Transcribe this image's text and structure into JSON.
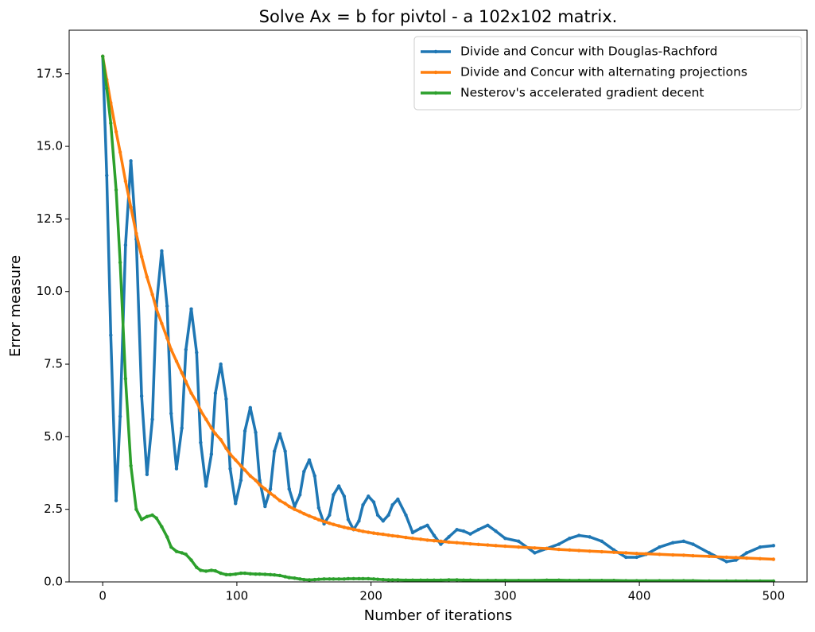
{
  "chart_data": {
    "type": "line",
    "title": "Solve Ax = b for pivtol - a 102x102 matrix.",
    "x_label": "Number of iterations",
    "y_label": "Error measure",
    "xlim": [
      -25,
      525
    ],
    "ylim": [
      0,
      19.0
    ],
    "xticks": [
      0,
      100,
      200,
      300,
      400,
      500
    ],
    "yticks": [
      {
        "value": 0,
        "label": "0.0"
      },
      2.5,
      {
        "value": 5,
        "label": "5.0"
      },
      7.5,
      {
        "value": 10,
        "label": "10.0"
      },
      12.5,
      {
        "value": 15,
        "label": "15.0"
      },
      17.5
    ],
    "grid": false,
    "legend": "upper right",
    "x": [
      0,
      3,
      6,
      10,
      13,
      17,
      21,
      25,
      29,
      33,
      37,
      40,
      44,
      48,
      51,
      55,
      59,
      62,
      66,
      70,
      73,
      77,
      81,
      84,
      88,
      92,
      95,
      99,
      103,
      106,
      110,
      114,
      117,
      121,
      125,
      128,
      132,
      136,
      139,
      143,
      147,
      150,
      154,
      158,
      161,
      165,
      169,
      172,
      176,
      180,
      183,
      187,
      191,
      194,
      198,
      202,
      205,
      209,
      213,
      216,
      220,
      226,
      231,
      237,
      242,
      247,
      252,
      258,
      264,
      269,
      274,
      280,
      287,
      293,
      300,
      310,
      322,
      331,
      340,
      348,
      355,
      363,
      372,
      381,
      390,
      398,
      405,
      415,
      425,
      433,
      440,
      452,
      465,
      472,
      480,
      490,
      500
    ],
    "series": [
      {
        "name": "Divide and Concur with Douglas-Rachford",
        "color": "#1f77b4",
        "values": [
          18.1,
          14,
          8.5,
          2.8,
          5.7,
          11.6,
          14.5,
          11.8,
          6.4,
          3.7,
          5.6,
          9.5,
          11.4,
          9.5,
          5.8,
          3.9,
          5.3,
          8.0,
          9.4,
          7.9,
          4.8,
          3.3,
          4.4,
          6.5,
          7.5,
          6.3,
          3.9,
          2.7,
          3.5,
          5.2,
          6.0,
          5.15,
          3.5,
          2.6,
          3.2,
          4.5,
          5.1,
          4.5,
          3.2,
          2.6,
          3.0,
          3.8,
          4.2,
          3.65,
          2.55,
          2.0,
          2.3,
          3.0,
          3.3,
          2.95,
          2.15,
          1.8,
          2.1,
          2.65,
          2.95,
          2.75,
          2.3,
          2.1,
          2.3,
          2.65,
          2.85,
          2.3,
          1.7,
          1.85,
          1.95,
          1.6,
          1.3,
          1.55,
          1.8,
          1.75,
          1.65,
          1.8,
          1.95,
          1.75,
          1.5,
          1.4,
          1.0,
          1.15,
          1.3,
          1.5,
          1.6,
          1.55,
          1.4,
          1.1,
          0.85,
          0.85,
          0.95,
          1.2,
          1.35,
          1.4,
          1.3,
          1.0,
          0.7,
          0.75,
          1.0,
          1.2,
          1.25
        ]
      },
      {
        "name": "Divide and Concur with alternating projections",
        "color": "#ff7f0e",
        "values": [
          18.1,
          17.3,
          16.5,
          15.5,
          14.8,
          13.8,
          12.9,
          12.0,
          11.2,
          10.5,
          9.9,
          9.4,
          8.9,
          8.4,
          8.0,
          7.6,
          7.2,
          6.9,
          6.5,
          6.2,
          5.9,
          5.6,
          5.3,
          5.1,
          4.9,
          4.6,
          4.4,
          4.2,
          4.0,
          3.85,
          3.65,
          3.5,
          3.35,
          3.2,
          3.05,
          2.95,
          2.8,
          2.7,
          2.6,
          2.5,
          2.42,
          2.35,
          2.27,
          2.2,
          2.14,
          2.08,
          2.02,
          1.98,
          1.93,
          1.88,
          1.85,
          1.81,
          1.77,
          1.74,
          1.71,
          1.68,
          1.66,
          1.64,
          1.61,
          1.59,
          1.57,
          1.53,
          1.5,
          1.47,
          1.44,
          1.42,
          1.4,
          1.37,
          1.35,
          1.33,
          1.31,
          1.29,
          1.27,
          1.25,
          1.23,
          1.2,
          1.17,
          1.15,
          1.12,
          1.1,
          1.08,
          1.06,
          1.04,
          1.02,
          1.0,
          0.98,
          0.97,
          0.95,
          0.93,
          0.92,
          0.9,
          0.88,
          0.85,
          0.84,
          0.82,
          0.8,
          0.78
        ]
      },
      {
        "name": "Nesterov's accelerated gradient decent",
        "color": "#2ca02c",
        "values": [
          18.1,
          17,
          15.8,
          13.5,
          11,
          7.0,
          4.0,
          2.5,
          2.15,
          2.25,
          2.3,
          2.2,
          1.9,
          1.55,
          1.2,
          1.05,
          1.0,
          0.95,
          0.75,
          0.5,
          0.4,
          0.37,
          0.4,
          0.38,
          0.3,
          0.25,
          0.25,
          0.27,
          0.3,
          0.3,
          0.28,
          0.27,
          0.27,
          0.26,
          0.25,
          0.24,
          0.22,
          0.18,
          0.15,
          0.13,
          0.1,
          0.08,
          0.07,
          0.08,
          0.09,
          0.1,
          0.1,
          0.1,
          0.1,
          0.1,
          0.11,
          0.11,
          0.11,
          0.11,
          0.11,
          0.1,
          0.09,
          0.08,
          0.07,
          0.07,
          0.07,
          0.06,
          0.06,
          0.06,
          0.06,
          0.06,
          0.06,
          0.07,
          0.07,
          0.06,
          0.06,
          0.05,
          0.05,
          0.05,
          0.05,
          0.05,
          0.05,
          0.06,
          0.06,
          0.05,
          0.05,
          0.05,
          0.05,
          0.05,
          0.04,
          0.04,
          0.04,
          0.04,
          0.04,
          0.04,
          0.04,
          0.03,
          0.03,
          0.03,
          0.03,
          0.03,
          0.03
        ]
      }
    ]
  }
}
